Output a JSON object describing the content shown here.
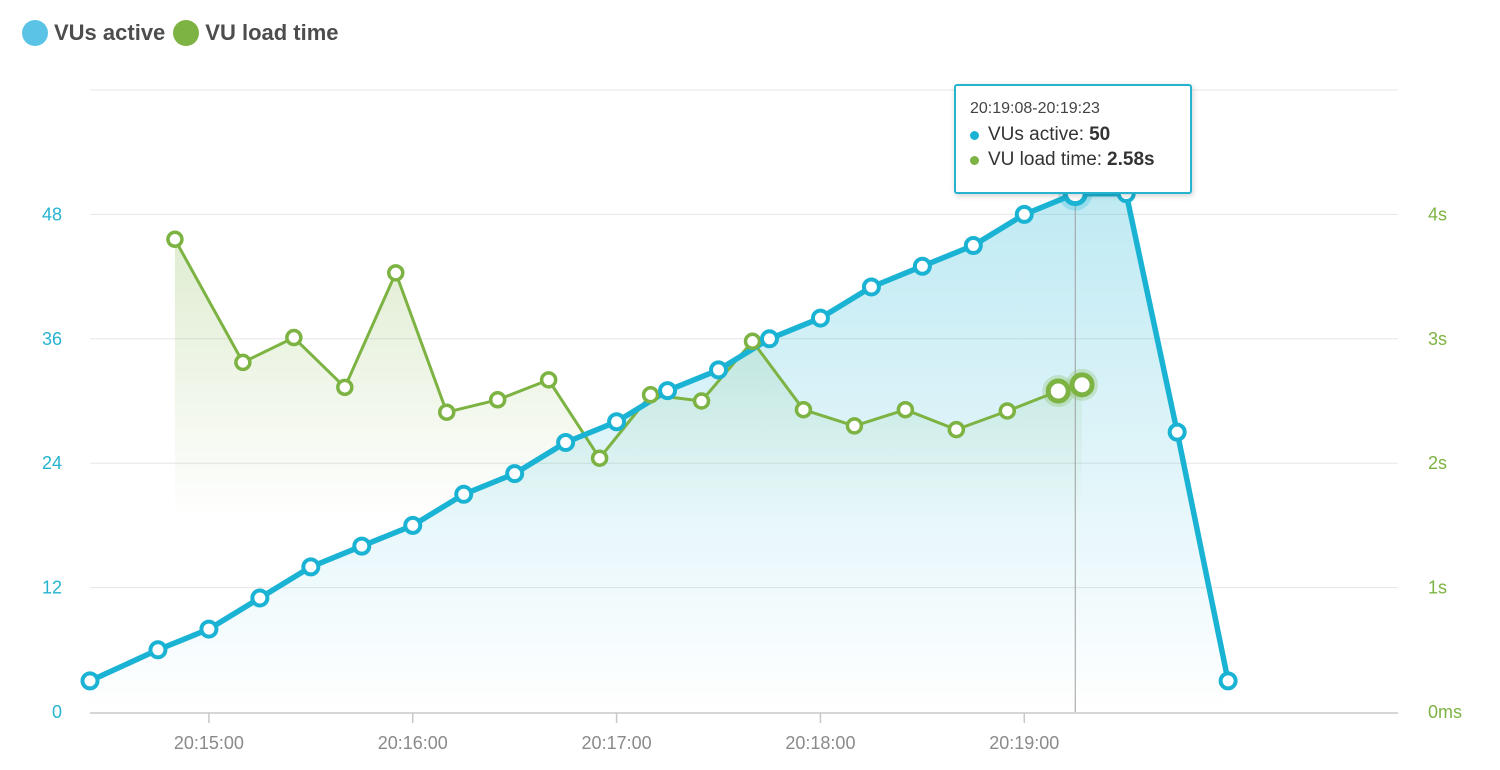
{
  "legend": {
    "vus_label": "VUs active",
    "load_label": "VU load time"
  },
  "colors": {
    "vus": "#1bb3d4",
    "load": "#7cb342",
    "grid": "#e6e6e6",
    "cursor": "#9e9e9e"
  },
  "tooltip": {
    "range": "20:19:08-20:19:23",
    "vus_label": "VUs active:",
    "vus_value": "50",
    "load_label": "VU load time:",
    "load_value": "2.58s"
  },
  "chart_data": {
    "type": "line",
    "x_axis": {
      "ticks": [
        "20:15:00",
        "20:16:00",
        "20:17:00",
        "20:18:00",
        "20:19:00"
      ],
      "range": [
        "20:14:25",
        "20:20:50"
      ]
    },
    "y_left": {
      "ticks": [
        "0",
        "12",
        "24",
        "36",
        "48"
      ],
      "range": [
        0,
        60
      ]
    },
    "y_right": {
      "ticks": [
        "0ms",
        "1s",
        "2s",
        "3s",
        "4s"
      ],
      "range": [
        0,
        5
      ]
    },
    "grid": true,
    "legend_position": "top-left",
    "series": [
      {
        "name": "VUs active",
        "axis": "left",
        "area": true,
        "points": [
          [
            "20:14:25",
            3
          ],
          [
            "20:14:45",
            6
          ],
          [
            "20:15:00",
            8
          ],
          [
            "20:15:15",
            11
          ],
          [
            "20:15:30",
            14
          ],
          [
            "20:15:45",
            16
          ],
          [
            "20:16:00",
            18
          ],
          [
            "20:16:15",
            21
          ],
          [
            "20:16:30",
            23
          ],
          [
            "20:16:45",
            26
          ],
          [
            "20:17:00",
            28
          ],
          [
            "20:17:15",
            31
          ],
          [
            "20:17:30",
            33
          ],
          [
            "20:17:45",
            36
          ],
          [
            "20:18:00",
            38
          ],
          [
            "20:18:15",
            41
          ],
          [
            "20:18:30",
            43
          ],
          [
            "20:18:45",
            45
          ],
          [
            "20:19:00",
            48
          ],
          [
            "20:19:15",
            50
          ],
          [
            "20:19:30",
            50
          ],
          [
            "20:19:45",
            27
          ],
          [
            "20:20:00",
            3
          ]
        ]
      },
      {
        "name": "VU load time",
        "axis": "right",
        "area": true,
        "points": [
          [
            "20:14:50",
            3.8
          ],
          [
            "20:15:10",
            2.81
          ],
          [
            "20:15:25",
            3.01
          ],
          [
            "20:15:40",
            2.61
          ],
          [
            "20:15:55",
            3.53
          ],
          [
            "20:16:10",
            2.41
          ],
          [
            "20:16:25",
            2.51
          ],
          [
            "20:16:40",
            2.67
          ],
          [
            "20:16:55",
            2.04
          ],
          [
            "20:17:10",
            2.55
          ],
          [
            "20:17:25",
            2.5
          ],
          [
            "20:17:40",
            2.98
          ],
          [
            "20:17:55",
            2.43
          ],
          [
            "20:18:10",
            2.3
          ],
          [
            "20:18:25",
            2.43
          ],
          [
            "20:18:40",
            2.27
          ],
          [
            "20:18:55",
            2.42
          ],
          [
            "20:19:10",
            2.58
          ],
          [
            "20:19:17",
            2.63
          ]
        ]
      }
    ],
    "highlight": {
      "x": "20:19:15",
      "vus": 50,
      "load": 2.58
    }
  }
}
